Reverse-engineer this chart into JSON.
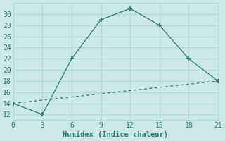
{
  "xlabel": "Humidex (Indice chaleur)",
  "line1_x": [
    0,
    3,
    6,
    9,
    12,
    15,
    18,
    21
  ],
  "line1_y": [
    14,
    12,
    22,
    29,
    31,
    28,
    22,
    18
  ],
  "line2_x": [
    0,
    21
  ],
  "line2_y": [
    14,
    18
  ],
  "line_color": "#2a7a6a",
  "bg_color": "#cce8e8",
  "grid_color": "#b0d8d8",
  "xlim": [
    0,
    21
  ],
  "ylim": [
    11,
    32
  ],
  "xticks": [
    0,
    3,
    6,
    9,
    12,
    15,
    18,
    21
  ],
  "yticks": [
    12,
    14,
    16,
    18,
    20,
    22,
    24,
    26,
    28,
    30
  ],
  "xlabel_fontsize": 7.5,
  "tick_fontsize": 7
}
